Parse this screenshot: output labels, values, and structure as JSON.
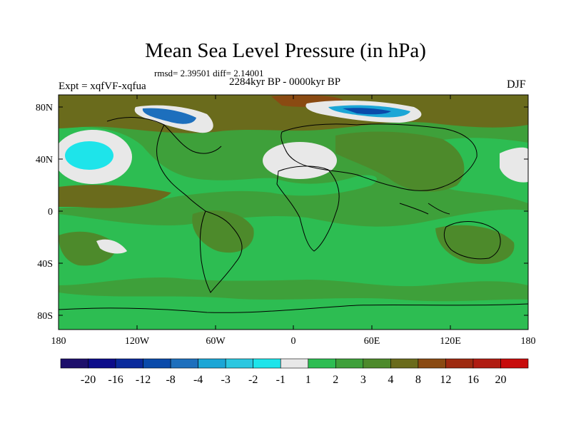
{
  "title": "Mean Sea Level Pressure (in hPa)",
  "stats": "rmsd= 2.39501  diff= 2.14001",
  "experiment": "Expt = xqfVF-xqfua",
  "period": "2284kyr BP - 0000kyr BP",
  "season": "DJF",
  "lat_labels": [
    "80N",
    "40N",
    "0",
    "40S",
    "80S"
  ],
  "lon_labels": [
    "180",
    "120W",
    "60W",
    "0",
    "60E",
    "120E",
    "180"
  ],
  "colorbar": {
    "labels": [
      "-20",
      "-16",
      "-12",
      "-8",
      "-4",
      "-3",
      "-2",
      "-1",
      "1",
      "2",
      "3",
      "4",
      "8",
      "12",
      "16",
      "20"
    ],
    "colors": [
      "#1d0f6b",
      "#0c0c8a",
      "#0a2a9c",
      "#0a4aaa",
      "#1d6fbd",
      "#1ba6d6",
      "#2bc7e0",
      "#1ee4ea",
      "#e8e8e8",
      "#2dbd52",
      "#3ea03a",
      "#4d8a2b",
      "#6a6b1c",
      "#8a4a12",
      "#9e2a10",
      "#b01c12",
      "#c80c0c"
    ]
  }
}
